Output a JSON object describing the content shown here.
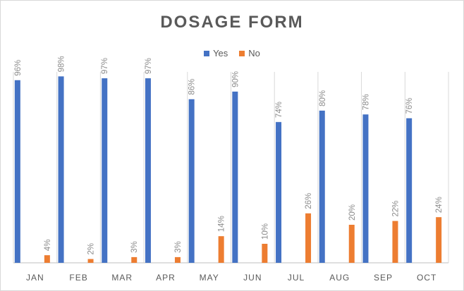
{
  "chart_data": {
    "type": "bar",
    "title": "DOSAGE FORM",
    "categories": [
      "JAN",
      "FEB",
      "MAR",
      "APR",
      "MAY",
      "JUN",
      "JUL",
      "AUG",
      "SEP",
      "OCT"
    ],
    "series": [
      {
        "name": "Yes",
        "color": "#4472c4",
        "values": [
          96,
          98,
          97,
          97,
          86,
          90,
          74,
          80,
          78,
          76
        ]
      },
      {
        "name": "No",
        "color": "#ed7d31",
        "values": [
          4,
          2,
          3,
          3,
          14,
          10,
          26,
          20,
          22,
          24
        ]
      }
    ],
    "value_suffix": "%",
    "ylim": [
      0,
      100
    ],
    "legend_position": "top",
    "vertical_category_gridlines": true,
    "data_labels": "rotated"
  }
}
